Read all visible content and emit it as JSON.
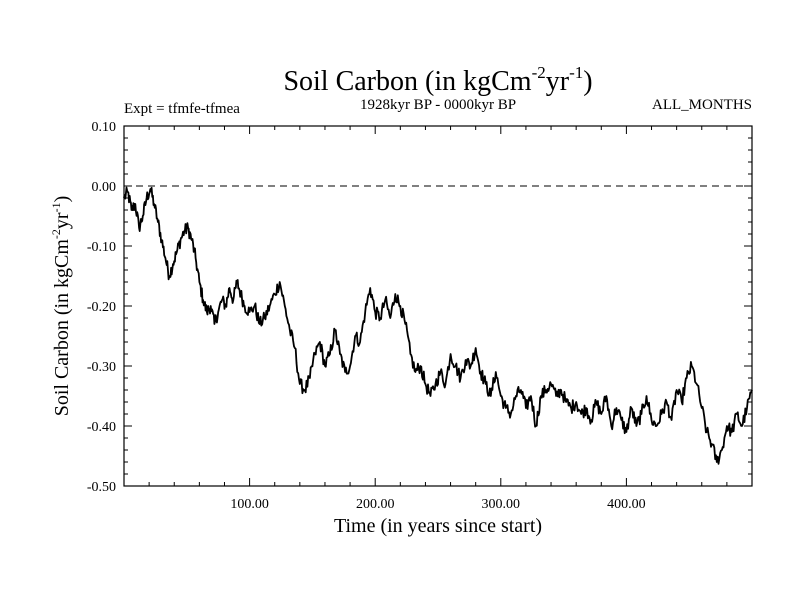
{
  "chart_data": {
    "type": "line",
    "title": "Soil Carbon (in kgCm",
    "title_exp1": "-2",
    "title_mid": "yr",
    "title_exp2": "-1",
    "title_end": ")",
    "subtitle_left": "Expt = tfmfe-tfmea",
    "subtitle_center": "1928kyr BP - 0000kyr BP",
    "subtitle_right": "ALL_MONTHS",
    "xlabel": "Time (in years since start)",
    "ylabel": "Soil Carbon (in kgCm",
    "ylabel_exp1": "-2",
    "ylabel_mid": "yr",
    "ylabel_exp2": "-1",
    "ylabel_end": ")",
    "xlim": [
      0,
      500
    ],
    "ylim": [
      -0.5,
      0.1
    ],
    "xticks": [
      100,
      200,
      300,
      400
    ],
    "xtick_labels": [
      "100.00",
      "200.00",
      "300.00",
      "400.00"
    ],
    "yticks": [
      0.1,
      0.0,
      -0.1,
      -0.2,
      -0.3,
      -0.4,
      -0.5
    ],
    "ytick_labels": [
      "0.10",
      "0.00",
      "-0.10",
      "-0.20",
      "-0.30",
      "-0.40",
      "-0.50"
    ],
    "reference_line": {
      "y": 0.0,
      "style": "dashed"
    },
    "series": [
      {
        "name": "Soil Carbon",
        "color": "#000000",
        "x": [
          0,
          3,
          6,
          9,
          12,
          15,
          18,
          21,
          24,
          27,
          30,
          33,
          36,
          39,
          42,
          45,
          48,
          51,
          54,
          57,
          60,
          63,
          66,
          69,
          72,
          75,
          78,
          81,
          84,
          87,
          90,
          93,
          96,
          100,
          104,
          108,
          112,
          116,
          120,
          124,
          128,
          132,
          136,
          140,
          144,
          148,
          152,
          156,
          160,
          164,
          168,
          172,
          176,
          180,
          184,
          188,
          192,
          196,
          200,
          204,
          208,
          212,
          216,
          220,
          224,
          228,
          232,
          236,
          240,
          244,
          248,
          252,
          256,
          260,
          264,
          268,
          272,
          276,
          280,
          284,
          288,
          292,
          296,
          300,
          304,
          308,
          312,
          316,
          320,
          324,
          328,
          332,
          336,
          340,
          344,
          348,
          352,
          356,
          360,
          364,
          368,
          372,
          376,
          380,
          384,
          388,
          392,
          396,
          400,
          404,
          408,
          412,
          416,
          420,
          424,
          428,
          432,
          436,
          440,
          444,
          448,
          452,
          456,
          460,
          464,
          468,
          472,
          476,
          480,
          484,
          488,
          492,
          496,
          500
        ],
        "values": [
          -0.02,
          -0.01,
          -0.04,
          -0.03,
          -0.07,
          -0.05,
          -0.02,
          -0.005,
          -0.03,
          -0.06,
          -0.09,
          -0.12,
          -0.15,
          -0.13,
          -0.11,
          -0.09,
          -0.075,
          -0.07,
          -0.09,
          -0.12,
          -0.16,
          -0.19,
          -0.21,
          -0.2,
          -0.23,
          -0.21,
          -0.19,
          -0.2,
          -0.17,
          -0.19,
          -0.16,
          -0.18,
          -0.2,
          -0.21,
          -0.2,
          -0.23,
          -0.22,
          -0.2,
          -0.18,
          -0.16,
          -0.2,
          -0.24,
          -0.27,
          -0.33,
          -0.34,
          -0.32,
          -0.28,
          -0.26,
          -0.3,
          -0.28,
          -0.24,
          -0.28,
          -0.31,
          -0.3,
          -0.25,
          -0.26,
          -0.21,
          -0.17,
          -0.21,
          -0.22,
          -0.19,
          -0.22,
          -0.18,
          -0.2,
          -0.23,
          -0.28,
          -0.31,
          -0.3,
          -0.33,
          -0.35,
          -0.33,
          -0.31,
          -0.33,
          -0.28,
          -0.3,
          -0.32,
          -0.29,
          -0.3,
          -0.27,
          -0.31,
          -0.33,
          -0.35,
          -0.31,
          -0.35,
          -0.37,
          -0.38,
          -0.35,
          -0.34,
          -0.37,
          -0.35,
          -0.4,
          -0.35,
          -0.34,
          -0.33,
          -0.35,
          -0.34,
          -0.36,
          -0.37,
          -0.36,
          -0.38,
          -0.37,
          -0.39,
          -0.36,
          -0.38,
          -0.35,
          -0.4,
          -0.37,
          -0.39,
          -0.41,
          -0.37,
          -0.4,
          -0.38,
          -0.35,
          -0.39,
          -0.4,
          -0.38,
          -0.36,
          -0.39,
          -0.34,
          -0.36,
          -0.32,
          -0.3,
          -0.33,
          -0.37,
          -0.41,
          -0.43,
          -0.46,
          -0.44,
          -0.4,
          -0.41,
          -0.38,
          -0.4,
          -0.37,
          -0.34
        ]
      }
    ]
  }
}
